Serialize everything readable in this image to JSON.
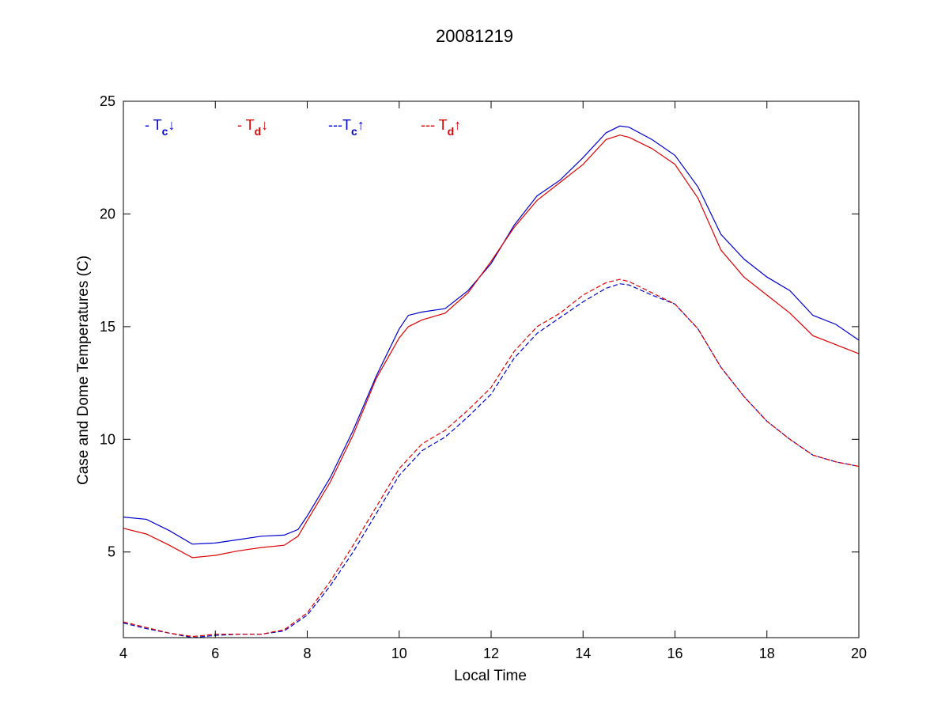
{
  "chart_data": {
    "type": "line",
    "title": "20081219",
    "xlabel": "Local Time",
    "ylabel": "Case and Dome Temperatures (C)",
    "xlim": [
      4,
      20
    ],
    "ylim": [
      1.2,
      25
    ],
    "xticks": [
      4,
      6,
      8,
      10,
      12,
      14,
      16,
      18,
      20
    ],
    "yticks": [
      5,
      10,
      15,
      20,
      25
    ],
    "grid": false,
    "legend_placement": "top-left, horizontal inside plot",
    "legend": [
      {
        "prefix": "- T",
        "sub": "c",
        "arrow": "↓",
        "color": "#0000cc"
      },
      {
        "prefix": "- T",
        "sub": "d",
        "arrow": "↓",
        "color": "#dd0000"
      },
      {
        "prefix": "---T",
        "sub": "c",
        "arrow": "↑",
        "color": "#0000cc"
      },
      {
        "prefix": "--- T",
        "sub": "d",
        "arrow": "↑",
        "color": "#dd0000"
      }
    ],
    "series": [
      {
        "key": "tc_down",
        "color": "#0000cc",
        "style": "solid",
        "points": [
          [
            4.0,
            6.55
          ],
          [
            4.5,
            6.45
          ],
          [
            5.0,
            5.95
          ],
          [
            5.5,
            5.35
          ],
          [
            6.0,
            5.4
          ],
          [
            6.5,
            5.55
          ],
          [
            7.0,
            5.7
          ],
          [
            7.5,
            5.75
          ],
          [
            7.8,
            6.0
          ],
          [
            8.0,
            6.6
          ],
          [
            8.5,
            8.3
          ],
          [
            9.0,
            10.4
          ],
          [
            9.5,
            12.8
          ],
          [
            10.0,
            14.9
          ],
          [
            10.2,
            15.5
          ],
          [
            10.5,
            15.65
          ],
          [
            11.0,
            15.8
          ],
          [
            11.5,
            16.6
          ],
          [
            12.0,
            17.8
          ],
          [
            12.5,
            19.5
          ],
          [
            13.0,
            20.8
          ],
          [
            13.5,
            21.5
          ],
          [
            14.0,
            22.5
          ],
          [
            14.5,
            23.6
          ],
          [
            14.8,
            23.9
          ],
          [
            15.0,
            23.85
          ],
          [
            15.5,
            23.3
          ],
          [
            16.0,
            22.6
          ],
          [
            16.5,
            21.2
          ],
          [
            17.0,
            19.1
          ],
          [
            17.5,
            18.0
          ],
          [
            18.0,
            17.2
          ],
          [
            18.5,
            16.6
          ],
          [
            19.0,
            15.5
          ],
          [
            19.5,
            15.1
          ],
          [
            20.0,
            14.4
          ]
        ]
      },
      {
        "key": "td_down",
        "color": "#dd0000",
        "style": "solid",
        "points": [
          [
            4.0,
            6.05
          ],
          [
            4.5,
            5.8
          ],
          [
            5.0,
            5.3
          ],
          [
            5.5,
            4.75
          ],
          [
            6.0,
            4.85
          ],
          [
            6.5,
            5.05
          ],
          [
            7.0,
            5.2
          ],
          [
            7.5,
            5.3
          ],
          [
            7.8,
            5.7
          ],
          [
            8.0,
            6.4
          ],
          [
            8.5,
            8.1
          ],
          [
            9.0,
            10.2
          ],
          [
            9.5,
            12.7
          ],
          [
            10.0,
            14.5
          ],
          [
            10.2,
            15.0
          ],
          [
            10.5,
            15.3
          ],
          [
            11.0,
            15.6
          ],
          [
            11.5,
            16.5
          ],
          [
            12.0,
            17.9
          ],
          [
            12.5,
            19.4
          ],
          [
            13.0,
            20.6
          ],
          [
            13.5,
            21.4
          ],
          [
            14.0,
            22.2
          ],
          [
            14.5,
            23.3
          ],
          [
            14.8,
            23.5
          ],
          [
            15.0,
            23.4
          ],
          [
            15.5,
            22.9
          ],
          [
            16.0,
            22.2
          ],
          [
            16.5,
            20.7
          ],
          [
            17.0,
            18.4
          ],
          [
            17.5,
            17.2
          ],
          [
            18.0,
            16.4
          ],
          [
            18.5,
            15.6
          ],
          [
            19.0,
            14.6
          ],
          [
            19.5,
            14.2
          ],
          [
            20.0,
            13.8
          ]
        ]
      },
      {
        "key": "tc_up",
        "color": "#0000cc",
        "style": "dashed",
        "points": [
          [
            4.0,
            1.85
          ],
          [
            4.5,
            1.6
          ],
          [
            5.0,
            1.4
          ],
          [
            5.5,
            1.2
          ],
          [
            6.0,
            1.3
          ],
          [
            6.5,
            1.35
          ],
          [
            7.0,
            1.35
          ],
          [
            7.5,
            1.5
          ],
          [
            8.0,
            2.2
          ],
          [
            8.5,
            3.5
          ],
          [
            9.0,
            5.0
          ],
          [
            9.5,
            6.7
          ],
          [
            10.0,
            8.4
          ],
          [
            10.5,
            9.5
          ],
          [
            11.0,
            10.1
          ],
          [
            11.5,
            11.0
          ],
          [
            12.0,
            12.0
          ],
          [
            12.5,
            13.6
          ],
          [
            13.0,
            14.7
          ],
          [
            13.5,
            15.4
          ],
          [
            14.0,
            16.1
          ],
          [
            14.5,
            16.7
          ],
          [
            14.8,
            16.9
          ],
          [
            15.0,
            16.85
          ],
          [
            15.5,
            16.4
          ],
          [
            16.0,
            16.0
          ],
          [
            16.5,
            14.9
          ],
          [
            17.0,
            13.2
          ],
          [
            17.5,
            11.9
          ],
          [
            18.0,
            10.8
          ],
          [
            18.5,
            10.0
          ],
          [
            19.0,
            9.3
          ],
          [
            19.5,
            9.0
          ],
          [
            20.0,
            8.8
          ]
        ]
      },
      {
        "key": "td_up",
        "color": "#dd0000",
        "style": "dashed",
        "points": [
          [
            4.0,
            1.9
          ],
          [
            4.5,
            1.65
          ],
          [
            5.0,
            1.4
          ],
          [
            5.5,
            1.25
          ],
          [
            6.0,
            1.35
          ],
          [
            6.5,
            1.35
          ],
          [
            7.0,
            1.35
          ],
          [
            7.5,
            1.55
          ],
          [
            8.0,
            2.3
          ],
          [
            8.5,
            3.7
          ],
          [
            9.0,
            5.3
          ],
          [
            9.5,
            7.0
          ],
          [
            10.0,
            8.7
          ],
          [
            10.5,
            9.8
          ],
          [
            11.0,
            10.4
          ],
          [
            11.5,
            11.3
          ],
          [
            12.0,
            12.3
          ],
          [
            12.5,
            13.9
          ],
          [
            13.0,
            15.0
          ],
          [
            13.5,
            15.6
          ],
          [
            14.0,
            16.4
          ],
          [
            14.5,
            16.95
          ],
          [
            14.8,
            17.1
          ],
          [
            15.0,
            17.0
          ],
          [
            15.5,
            16.5
          ],
          [
            16.0,
            16.0
          ],
          [
            16.5,
            14.9
          ],
          [
            17.0,
            13.2
          ],
          [
            17.5,
            11.9
          ],
          [
            18.0,
            10.8
          ],
          [
            18.5,
            10.0
          ],
          [
            19.0,
            9.3
          ],
          [
            19.5,
            9.0
          ],
          [
            20.0,
            8.8
          ]
        ]
      }
    ]
  }
}
